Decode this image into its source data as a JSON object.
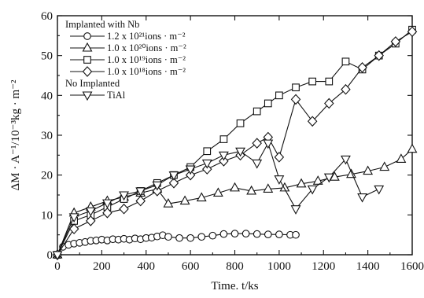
{
  "chart_data": {
    "type": "line",
    "xlabel": "Time. t/ks",
    "ylabel": "ΔM · A⁻¹/10⁻³kg · m⁻²",
    "xlim": [
      0,
      1600
    ],
    "ylim": [
      0,
      60
    ],
    "xticks": [
      "0",
      "200",
      "400",
      "600",
      "800",
      "1000",
      "1200",
      "1400",
      "1600"
    ],
    "yticks": [
      "0",
      "10",
      "20",
      "30",
      "40",
      "50",
      "60"
    ],
    "grid": false,
    "legend_placement": "top-left",
    "legend_headers": {
      "implanted": "Implanted with Nb",
      "not_implanted": "No Implanted"
    },
    "series": [
      {
        "name": "1.2 x 10²¹ions · m⁻²",
        "marker": "circle",
        "points": [
          [
            0,
            0
          ],
          [
            25,
            2
          ],
          [
            50,
            2.5
          ],
          [
            75,
            2.8
          ],
          [
            100,
            3
          ],
          [
            125,
            3.2
          ],
          [
            150,
            3.5
          ],
          [
            175,
            3.6
          ],
          [
            200,
            3.8
          ],
          [
            225,
            3.6
          ],
          [
            250,
            3.9
          ],
          [
            275,
            3.8
          ],
          [
            300,
            4
          ],
          [
            325,
            3.8
          ],
          [
            350,
            4.1
          ],
          [
            375,
            3.9
          ],
          [
            400,
            4.2
          ],
          [
            425,
            4.3
          ],
          [
            450,
            4.6
          ],
          [
            475,
            4.9
          ],
          [
            500,
            4.5
          ],
          [
            550,
            4.2
          ],
          [
            600,
            4.2
          ],
          [
            650,
            4.5
          ],
          [
            700,
            4.8
          ],
          [
            750,
            5.2
          ],
          [
            800,
            5.3
          ],
          [
            850,
            5.3
          ],
          [
            900,
            5.2
          ],
          [
            950,
            5.1
          ],
          [
            1000,
            5.1
          ],
          [
            1050,
            5.0
          ],
          [
            1075,
            5.0
          ]
        ]
      },
      {
        "name": "1.0 x 10²⁰ions · m⁻²",
        "marker": "triangle-up",
        "points": [
          [
            0,
            0
          ],
          [
            75,
            10.5
          ],
          [
            150,
            12
          ],
          [
            225,
            13.5
          ],
          [
            300,
            14.5
          ],
          [
            375,
            15.5
          ],
          [
            450,
            16.5
          ],
          [
            500,
            12.8
          ],
          [
            575,
            13.5
          ],
          [
            650,
            14.3
          ],
          [
            725,
            15.5
          ],
          [
            800,
            16.8
          ],
          [
            875,
            16
          ],
          [
            950,
            16.5
          ],
          [
            1025,
            16.8
          ],
          [
            1100,
            17.8
          ],
          [
            1175,
            18.5
          ],
          [
            1250,
            19.5
          ],
          [
            1325,
            20.2
          ],
          [
            1400,
            21
          ],
          [
            1475,
            22
          ],
          [
            1550,
            24
          ],
          [
            1600,
            26.5
          ]
        ]
      },
      {
        "name": "1.0 x 10¹⁹ions · m⁻²",
        "marker": "square",
        "points": [
          [
            0,
            0
          ],
          [
            75,
            8.5
          ],
          [
            150,
            10
          ],
          [
            225,
            12
          ],
          [
            300,
            14
          ],
          [
            375,
            16
          ],
          [
            450,
            18
          ],
          [
            525,
            20
          ],
          [
            600,
            22
          ],
          [
            675,
            26
          ],
          [
            750,
            29
          ],
          [
            825,
            33
          ],
          [
            900,
            36
          ],
          [
            950,
            38
          ],
          [
            1000,
            40
          ],
          [
            1075,
            42
          ],
          [
            1150,
            43.5
          ],
          [
            1225,
            43.5
          ],
          [
            1300,
            48.5
          ],
          [
            1375,
            46.5
          ],
          [
            1450,
            50
          ],
          [
            1525,
            53
          ],
          [
            1600,
            56.5
          ]
        ]
      },
      {
        "name": "1.0 x 10¹⁸ions · m⁻²",
        "marker": "diamond",
        "points": [
          [
            0,
            0
          ],
          [
            75,
            6.5
          ],
          [
            150,
            8.5
          ],
          [
            225,
            10.5
          ],
          [
            300,
            11.5
          ],
          [
            375,
            13.5
          ],
          [
            450,
            16
          ],
          [
            525,
            18
          ],
          [
            600,
            20
          ],
          [
            675,
            21.5
          ],
          [
            750,
            23.5
          ],
          [
            825,
            25
          ],
          [
            900,
            28
          ],
          [
            950,
            29.5
          ],
          [
            1000,
            24.5
          ],
          [
            1075,
            39
          ],
          [
            1150,
            33.5
          ],
          [
            1225,
            38
          ],
          [
            1300,
            41.5
          ],
          [
            1375,
            47
          ],
          [
            1450,
            50
          ],
          [
            1525,
            53.5
          ],
          [
            1600,
            56
          ]
        ]
      },
      {
        "name": "TiAl",
        "marker": "triangle-down",
        "points": [
          [
            0,
            0
          ],
          [
            75,
            9.5
          ],
          [
            150,
            11
          ],
          [
            225,
            13
          ],
          [
            300,
            15
          ],
          [
            375,
            16
          ],
          [
            450,
            17.5
          ],
          [
            525,
            20
          ],
          [
            600,
            21.5
          ],
          [
            675,
            23
          ],
          [
            750,
            25
          ],
          [
            825,
            26
          ],
          [
            900,
            23
          ],
          [
            950,
            28
          ],
          [
            1000,
            19
          ],
          [
            1075,
            11.5
          ],
          [
            1150,
            16.5
          ],
          [
            1225,
            19.5
          ],
          [
            1300,
            24
          ],
          [
            1375,
            14.5
          ],
          [
            1450,
            16.5
          ]
        ]
      }
    ]
  }
}
